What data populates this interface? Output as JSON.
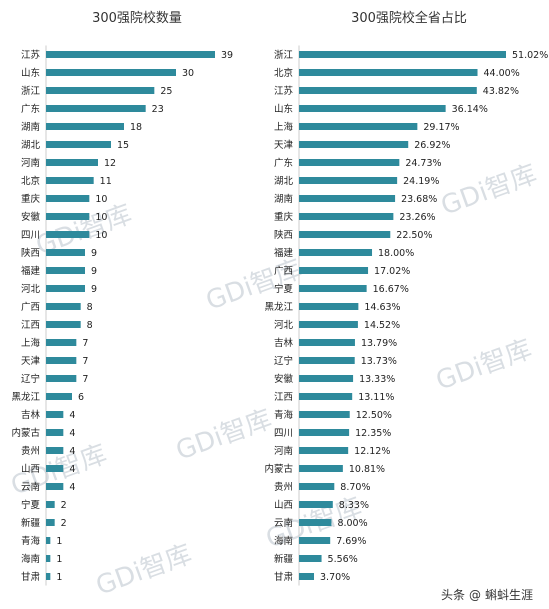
{
  "watermark": "GDi智库",
  "attribution": {
    "platform": "头条",
    "at": "@",
    "author": "蝌蚪生涯"
  },
  "chart_data": [
    {
      "type": "bar",
      "orientation": "horizontal",
      "title": "300强院校数量",
      "categories": [
        "江苏",
        "山东",
        "浙江",
        "广东",
        "湖南",
        "湖北",
        "河南",
        "北京",
        "重庆",
        "安徽",
        "四川",
        "陕西",
        "福建",
        "河北",
        "广西",
        "江西",
        "上海",
        "天津",
        "辽宁",
        "黑龙江",
        "吉林",
        "内蒙古",
        "贵州",
        "山西",
        "云南",
        "宁夏",
        "新疆",
        "青海",
        "海南",
        "甘肃"
      ],
      "values": [
        39,
        30,
        25,
        23,
        18,
        15,
        12,
        11,
        10,
        10,
        10,
        9,
        9,
        9,
        8,
        8,
        7,
        7,
        7,
        6,
        4,
        4,
        4,
        4,
        4,
        2,
        2,
        1,
        1,
        1
      ],
      "value_labels": [
        "39",
        "30",
        "25",
        "23",
        "18",
        "15",
        "12",
        "11",
        "10",
        "10",
        "10",
        "9",
        "9",
        "9",
        "8",
        "8",
        "7",
        "7",
        "7",
        "6",
        "4",
        "4",
        "4",
        "4",
        "4",
        "2",
        "2",
        "1",
        "1",
        "1"
      ],
      "xlim": [
        0,
        39
      ],
      "color": "#2e8a9c"
    },
    {
      "type": "bar",
      "orientation": "horizontal",
      "title": "300强院校全省占比",
      "categories": [
        "浙江",
        "北京",
        "江苏",
        "山东",
        "上海",
        "天津",
        "广东",
        "湖北",
        "湖南",
        "重庆",
        "陕西",
        "福建",
        "广西",
        "宁夏",
        "黑龙江",
        "河北",
        "吉林",
        "辽宁",
        "安徽",
        "江西",
        "青海",
        "四川",
        "河南",
        "内蒙古",
        "贵州",
        "山西",
        "云南",
        "海南",
        "新疆",
        "甘肃"
      ],
      "values": [
        51.02,
        44.0,
        43.82,
        36.14,
        29.17,
        26.92,
        24.73,
        24.19,
        23.68,
        23.26,
        22.5,
        18.0,
        17.02,
        16.67,
        14.63,
        14.52,
        13.79,
        13.73,
        13.33,
        13.11,
        12.5,
        12.35,
        12.12,
        10.81,
        8.7,
        8.33,
        8.0,
        7.69,
        5.56,
        3.7
      ],
      "value_labels": [
        "51.02%",
        "44.00%",
        "43.82%",
        "36.14%",
        "29.17%",
        "26.92%",
        "24.73%",
        "24.19%",
        "23.68%",
        "23.26%",
        "22.50%",
        "18.00%",
        "17.02%",
        "16.67%",
        "14.63%",
        "14.52%",
        "13.79%",
        "13.73%",
        "13.33%",
        "13.11%",
        "12.50%",
        "12.35%",
        "12.12%",
        "10.81%",
        "8.70%",
        "8.33%",
        "8.00%",
        "7.69%",
        "5.56%",
        "3.70%"
      ],
      "xlim": [
        0,
        51.02
      ],
      "color": "#2e8a9c"
    }
  ]
}
